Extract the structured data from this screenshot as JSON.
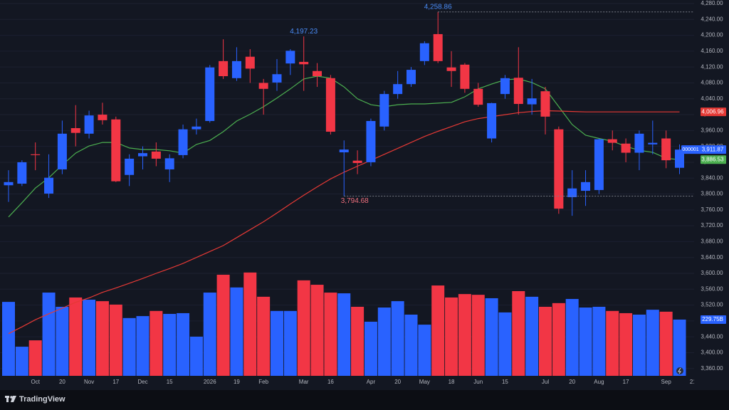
{
  "brand": "TradingView",
  "chart_data": {
    "type": "candlestick",
    "symbol_tag": "000001",
    "up_color": "#2962ff",
    "down_color": "#f23645",
    "grid": true,
    "categories": [
      null,
      null,
      "Oct",
      null,
      "20",
      null,
      "Nov",
      null,
      "17",
      null,
      "Dec",
      null,
      "15",
      null,
      null,
      "2026",
      null,
      "19",
      null,
      "Feb",
      null,
      null,
      "Mar",
      null,
      "16",
      null,
      null,
      "Apr",
      null,
      "20",
      null,
      "May",
      null,
      "18",
      null,
      "Jun",
      null,
      "15",
      null,
      null,
      "Jul",
      null,
      "20",
      null,
      "Aug",
      null,
      "17",
      null,
      null,
      "Sep",
      null,
      "21"
    ],
    "open": [
      3822,
      3826,
      3900,
      3801,
      3862,
      3966,
      3952,
      4000,
      3988,
      3848,
      3895,
      3907,
      3862,
      3898,
      3963,
      3984,
      4135,
      4092,
      4146,
      4080,
      4081,
      4129,
      4133,
      4110,
      4092,
      3905,
      3884,
      3880,
      3970,
      4052,
      4077,
      4135,
      4203,
      4119,
      4126,
      4065,
      3940,
      4052,
      4093,
      4026,
      4059,
      3963,
      3792,
      3808,
      3810,
      3938,
      3927,
      3904,
      3925,
      3940,
      3866,
      null
    ],
    "high": [
      3860,
      3885,
      3930,
      3900,
      3985,
      4024,
      4010,
      4030,
      3995,
      3900,
      3920,
      3930,
      3900,
      3975,
      3990,
      4125,
      4190,
      4170,
      4165,
      4090,
      4140,
      4165,
      4197.23,
      4130,
      4100,
      3935,
      3910,
      3990,
      4060,
      4110,
      4120,
      4185,
      4258.86,
      4160,
      4130,
      4080,
      4030,
      4100,
      4170,
      4090,
      4070,
      3970,
      3860,
      3860,
      3940,
      3960,
      3940,
      3960,
      3985,
      3960,
      3925,
      null
    ],
    "low": [
      3780,
      3820,
      3860,
      3790,
      3850,
      3920,
      3940,
      3975,
      3830,
      3820,
      3862,
      3870,
      3830,
      3890,
      3950,
      3980,
      4090,
      4085,
      4080,
      4000,
      4060,
      4100,
      4060,
      4070,
      3950,
      3794.68,
      3850,
      3870,
      3960,
      4040,
      4070,
      4125,
      4130,
      4070,
      4055,
      4020,
      3930,
      4040,
      4000,
      4000,
      3950,
      3750,
      3745,
      3770,
      3800,
      3910,
      3880,
      3860,
      3900,
      3865,
      3850,
      null
    ],
    "close": [
      3830,
      3880,
      3898,
      3841,
      3952,
      3954,
      3998,
      3986,
      3832,
      3889,
      3903,
      3889,
      3890,
      3963,
      3970,
      4119,
      4097,
      4135,
      4116,
      4065,
      4102,
      4161,
      4127,
      4097,
      3957,
      3912,
      3878,
      3984,
      4052,
      4077,
      4113,
      4180,
      4135,
      4110,
      4065,
      4025,
      4029,
      4092,
      4027,
      4041,
      3995,
      3763,
      3814,
      3830,
      3938,
      3929,
      3904,
      3952,
      3929,
      3885,
      3911.87,
      null
    ],
    "close_last_label": "3,911.87",
    "high_labels": {
      "22": "4,197.23",
      "32": "4,258.86"
    },
    "low_labels": {
      "25": "3,794.68"
    },
    "ylim": [
      3338,
      4289
    ],
    "yticks": [
      {
        "value": 3360,
        "label": "3,360.00"
      },
      {
        "value": 3400,
        "label": "3,400.00"
      },
      {
        "value": 3440,
        "label": "3,440.00"
      },
      {
        "value": 3480,
        "label": "3,480.00"
      },
      {
        "value": 3520,
        "label": "3,520.00"
      },
      {
        "value": 3560,
        "label": "3,560.00"
      },
      {
        "value": 3600,
        "label": "3,600.00"
      },
      {
        "value": 3640,
        "label": "3,640.00"
      },
      {
        "value": 3680,
        "label": "3,680.00"
      },
      {
        "value": 3720,
        "label": "3,720.00"
      },
      {
        "value": 3760,
        "label": "3,760.00"
      },
      {
        "value": 3800,
        "label": "3,800.00"
      },
      {
        "value": 3840,
        "label": "3,840.00"
      },
      {
        "value": 3880,
        "label": "3,880.00"
      },
      {
        "value": 3920,
        "label": "3,920.00"
      },
      {
        "value": 3960,
        "label": "3,960.00"
      },
      {
        "value": 4000,
        "label": "4,000.00"
      },
      {
        "value": 4040,
        "label": "4,040.00"
      },
      {
        "value": 4080,
        "label": "4,080.00"
      },
      {
        "value": 4120,
        "label": "4,120.00"
      },
      {
        "value": 4160,
        "label": "4,160.00"
      },
      {
        "value": 4200,
        "label": "4,200.00"
      },
      {
        "value": 4240,
        "label": "4,240.00"
      },
      {
        "value": 4280,
        "label": "4,280.00"
      }
    ],
    "series": [
      {
        "color": "#4caf50",
        "last_label": "3,886.53",
        "values": [
          3742,
          3778,
          3815,
          3841,
          3873,
          3903,
          3921,
          3930,
          3930,
          3916,
          3912,
          3912,
          3909,
          3903,
          3925,
          3935,
          3957,
          3984,
          4001,
          4020,
          4042,
          4065,
          4090,
          4097,
          4092,
          4070,
          4040,
          4025,
          4020,
          4025,
          4027,
          4027,
          4029,
          4031,
          4045,
          4065,
          4077,
          4088,
          4090,
          4081,
          4065,
          4020,
          3975,
          3948,
          3940,
          3933,
          3920,
          3910,
          3905,
          3890,
          3886.53,
          null
        ]
      },
      {
        "color": "#e53935",
        "last_label": "4,006.96",
        "values": [
          3448,
          3465,
          3483,
          3498,
          3512,
          3527,
          3538,
          3552,
          3563,
          3575,
          3587,
          3600,
          3612,
          3625,
          3640,
          3655,
          3670,
          3690,
          3710,
          3730,
          3752,
          3775,
          3797,
          3818,
          3838,
          3855,
          3870,
          3885,
          3900,
          3915,
          3930,
          3945,
          3958,
          3970,
          3982,
          3990,
          3995,
          4000,
          4005,
          4008,
          4010,
          4009,
          4008,
          4007,
          4007,
          4007,
          4007,
          4007,
          4007,
          4007,
          4006.96,
          null
        ]
      }
    ],
    "volume": {
      "ylim": [
        0,
        1535
      ],
      "last_label": "229.75B",
      "values": [
        302,
        119,
        145,
        340,
        282,
        320,
        311,
        305,
        291,
        236,
        244,
        265,
        253,
        256,
        160,
        340,
        413,
        361,
        422,
        323,
        265,
        265,
        390,
        372,
        340,
        337,
        282,
        221,
        279,
        305,
        250,
        209,
        369,
        320,
        334,
        331,
        317,
        259,
        346,
        323,
        282,
        297,
        314,
        279,
        282,
        265,
        256,
        250,
        270,
        262,
        229.75,
        null
      ]
    }
  }
}
